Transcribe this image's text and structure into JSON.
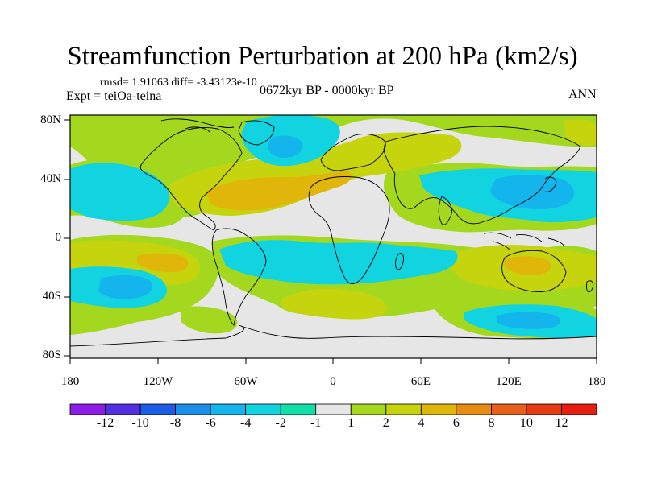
{
  "title": "Streamfunction Perturbation at 200 hPa (km2/s)",
  "stats": "rmsd= 1.91063  diff= -3.43123e-10",
  "experiment": "Expt = teiOa-teina",
  "period": "0672kyr BP - 0000kyr BP",
  "season": "ANN",
  "axes": {
    "lat_labels": [
      "80N",
      "40N",
      "0",
      "40S",
      "80S"
    ],
    "lon_labels": [
      "180",
      "120W",
      "60W",
      "0",
      "60E",
      "120E",
      "180"
    ]
  },
  "colorbar": {
    "labels": [
      "-12",
      "-10",
      "-8",
      "-6",
      "-4",
      "-2",
      "-1",
      "1",
      "2",
      "4",
      "6",
      "8",
      "10",
      "12"
    ],
    "colors": [
      "#8c1ce6",
      "#5030e0",
      "#1c5ce6",
      "#1a8ee8",
      "#14b4ec",
      "#12d4e0",
      "#10e0a6",
      "#e6e6e6",
      "#a4d81e",
      "#c6d40e",
      "#e0b60a",
      "#e68c12",
      "#e6601a",
      "#e63a16",
      "#e61e12"
    ]
  },
  "colors": {
    "background_field": "#e6e6e6",
    "coastline": "#000000",
    "frame": "#000000"
  }
}
